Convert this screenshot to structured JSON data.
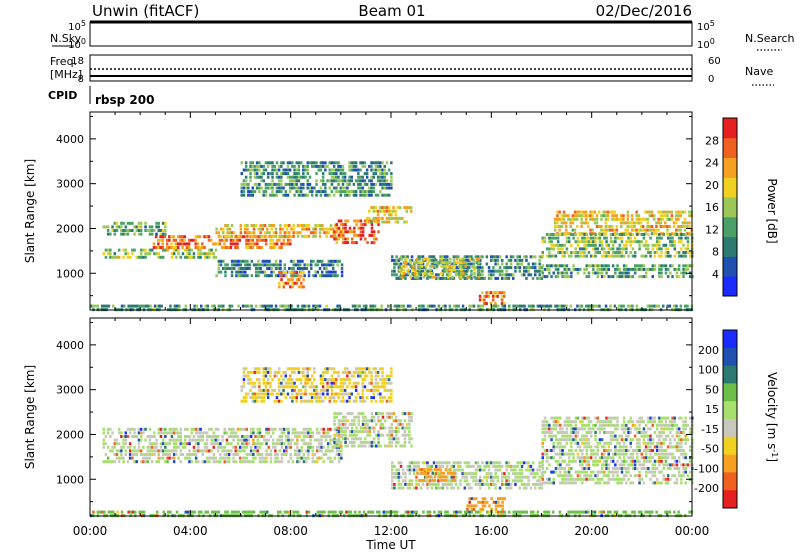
{
  "header": {
    "left_title": "Unwin (fitACF)",
    "center_title": "Beam 01",
    "right_title": "02/Dec/2016"
  },
  "summary_panels": {
    "nsky_label": "N.Sky",
    "nsky_ticks": [
      "10^5",
      "10^0"
    ],
    "nsearch_label": "N.Search",
    "nsearch_ticks": [
      "10^5",
      "10^0"
    ],
    "freq_label_1": "Freq.",
    "freq_label_2": "[MHz]",
    "freq_ticks": [
      "18",
      "8"
    ],
    "nave_label": "Nave",
    "nave_ticks": [
      "60",
      "0"
    ],
    "cpid_label": "CPID",
    "cpid_value": "rbsp 200"
  },
  "chart_data": [
    {
      "type": "heatmap",
      "title": "",
      "xlabel": "",
      "ylabel": "Slant Range [km]",
      "xlim": [
        0,
        24
      ],
      "ylim": [
        180,
        4600
      ],
      "y_ticks": [
        1000,
        2000,
        3000,
        4000
      ],
      "colorbar": {
        "label": "Power [dB]",
        "range": [
          0,
          32
        ],
        "ticks": [
          4,
          8,
          12,
          16,
          20,
          24,
          28
        ],
        "colors": [
          "#1a2bff",
          "#2050b0",
          "#2e7a72",
          "#4aa067",
          "#9cc85a",
          "#f0d020",
          "#f5a020",
          "#f06020",
          "#e62020"
        ]
      },
      "echo_regions": [
        {
          "t0": 0.5,
          "t1": 3.0,
          "r0": 1900,
          "r1": 2150,
          "value": 13
        },
        {
          "t0": 0.5,
          "t1": 5.0,
          "r0": 1350,
          "r1": 1550,
          "value": 16
        },
        {
          "t0": 2.5,
          "t1": 8.0,
          "r0": 1550,
          "r1": 1850,
          "value": 25
        },
        {
          "t0": 5.0,
          "t1": 10.0,
          "r0": 1800,
          "r1": 2100,
          "value": 21
        },
        {
          "t0": 9.7,
          "t1": 11.5,
          "r0": 1700,
          "r1": 2200,
          "value": 27
        },
        {
          "t0": 11.0,
          "t1": 12.8,
          "r0": 2100,
          "r1": 2500,
          "value": 20
        },
        {
          "t0": 12.0,
          "t1": 18.0,
          "r0": 900,
          "r1": 1400,
          "value": 10
        },
        {
          "t0": 12.3,
          "t1": 15.5,
          "r0": 900,
          "r1": 1350,
          "value": 17
        },
        {
          "t0": 5.0,
          "t1": 10.0,
          "r0": 900,
          "r1": 1300,
          "value": 9
        },
        {
          "t0": 7.5,
          "t1": 8.5,
          "r0": 650,
          "r1": 1050,
          "value": 24
        },
        {
          "t0": 15.5,
          "t1": 16.5,
          "r0": 300,
          "r1": 600,
          "value": 25
        },
        {
          "t0": 6.0,
          "t1": 12.0,
          "r0": 2700,
          "r1": 3500,
          "value": 11
        },
        {
          "t0": 18.5,
          "t1": 24.0,
          "r0": 1900,
          "r1": 2400,
          "value": 20
        },
        {
          "t0": 18.0,
          "t1": 24.0,
          "r0": 1400,
          "r1": 1900,
          "value": 15
        },
        {
          "t0": 18.0,
          "t1": 24.0,
          "r0": 950,
          "r1": 1200,
          "value": 12
        },
        {
          "t0": 0.0,
          "t1": 24.0,
          "r0": 180,
          "r1": 300,
          "value": 12
        }
      ]
    },
    {
      "type": "heatmap",
      "title": "",
      "xlabel": "Time UT",
      "ylabel": "Slant Range [km]",
      "xlim": [
        0,
        24
      ],
      "ylim": [
        180,
        4600
      ],
      "x_ticks": [
        "00:00",
        "04:00",
        "08:00",
        "12:00",
        "16:00",
        "20:00",
        "00:00"
      ],
      "y_ticks": [
        1000,
        2000,
        3000,
        4000
      ],
      "colorbar": {
        "label": "Velocity [m s^-1]",
        "ticks": [
          "200",
          "100",
          "50",
          "15",
          "-15",
          "-50",
          "-100",
          "-200"
        ],
        "colors": [
          "#1a2bff",
          "#2050b0",
          "#2e7a72",
          "#6cc04a",
          "#a8e070",
          "#c8c8be",
          "#f0d020",
          "#f5a020",
          "#f06020",
          "#e62020"
        ]
      },
      "echo_regions": [
        {
          "t0": 0.5,
          "t1": 10.0,
          "r0": 1350,
          "r1": 2150,
          "value": 0
        },
        {
          "t0": 9.7,
          "t1": 12.8,
          "r0": 1700,
          "r1": 2500,
          "value": 0
        },
        {
          "t0": 12.0,
          "t1": 18.0,
          "r0": 800,
          "r1": 1400,
          "value": 0
        },
        {
          "t0": 13.0,
          "t1": 14.5,
          "r0": 950,
          "r1": 1250,
          "value": -60
        },
        {
          "t0": 15.0,
          "t1": 16.5,
          "r0": 300,
          "r1": 600,
          "value": -60
        },
        {
          "t0": 6.0,
          "t1": 12.0,
          "r0": 2700,
          "r1": 3500,
          "value": -20
        },
        {
          "t0": 18.0,
          "t1": 24.0,
          "r0": 950,
          "r1": 2400,
          "value": 0
        },
        {
          "t0": 0.0,
          "t1": 24.0,
          "r0": 180,
          "r1": 300,
          "value": 30
        }
      ]
    }
  ]
}
